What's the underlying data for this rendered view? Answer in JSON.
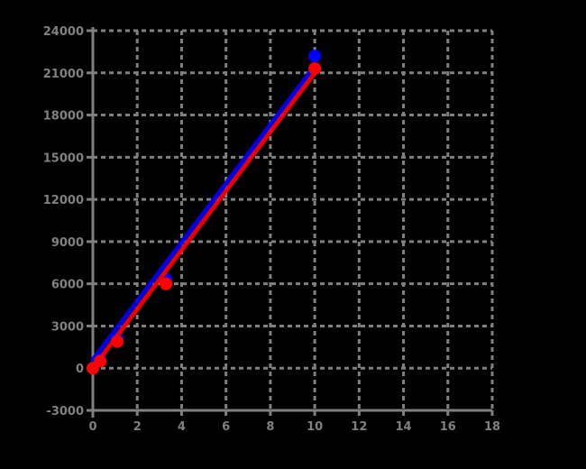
{
  "chart_data": {
    "type": "scatter",
    "title": "",
    "xlabel": "",
    "ylabel": "",
    "xlim": [
      0,
      18
    ],
    "ylim": [
      -3000,
      24000
    ],
    "xticks": [
      0,
      2,
      4,
      6,
      8,
      10,
      12,
      14,
      16,
      18
    ],
    "yticks": [
      -3000,
      0,
      3000,
      6000,
      9000,
      12000,
      15000,
      18000,
      21000,
      24000
    ],
    "grid": true,
    "grid_style": "dashed",
    "colors": {
      "background": "#000000",
      "grid": "#808080",
      "axis": "#808080"
    },
    "series": [
      {
        "color": "#0000ff",
        "points": [
          [
            0,
            0
          ],
          [
            0.33,
            600
          ],
          [
            1.1,
            2100
          ],
          [
            3.3,
            6300
          ],
          [
            10,
            22200
          ]
        ],
        "trend_line": [
          [
            0,
            600
          ],
          [
            10,
            21500
          ]
        ]
      },
      {
        "color": "#ff0000",
        "points": [
          [
            0,
            0
          ],
          [
            0.33,
            500
          ],
          [
            1.1,
            1900
          ],
          [
            3.3,
            6000
          ],
          [
            10,
            21300
          ]
        ],
        "trend_line": [
          [
            0,
            0
          ],
          [
            10,
            21000
          ]
        ]
      }
    ]
  }
}
